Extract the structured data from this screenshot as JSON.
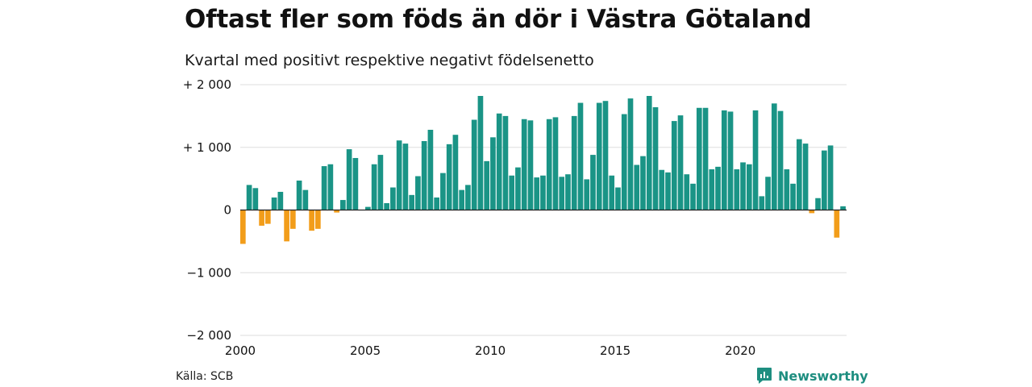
{
  "title": "Oftast fler som föds än dör i Västra Götaland",
  "subtitle": "Kvartal med positivt respektive negativt födelsenetto",
  "source": "Källa: SCB",
  "logo": {
    "name": "Newsworthy",
    "icon": "newsworthy-logo-icon"
  },
  "colors": {
    "positive": "#1a9486",
    "negative": "#f29d1a",
    "grid": "#dddddd",
    "zero": "#222222",
    "brand": "#1e8e80"
  },
  "chart_data": {
    "type": "bar",
    "title": "Oftast fler som föds än dör i Västra Götaland",
    "subtitle": "Kvartal med positivt respektive negativt födelsenetto",
    "xlabel": "",
    "ylabel": "",
    "ylim": [
      -2000,
      2000
    ],
    "xlim": [
      2000,
      2024.25
    ],
    "grid": true,
    "y_ticks": [
      {
        "value": 2000,
        "label": "+ 2 000"
      },
      {
        "value": 1000,
        "label": "+ 1 000"
      },
      {
        "value": 0,
        "label": "0"
      },
      {
        "value": -1000,
        "label": "−1 000"
      },
      {
        "value": -2000,
        "label": "−2 000"
      }
    ],
    "x_ticks": [
      {
        "value": 2000,
        "label": "2000"
      },
      {
        "value": 2005,
        "label": "2005"
      },
      {
        "value": 2010,
        "label": "2010"
      },
      {
        "value": 2015,
        "label": "2015"
      },
      {
        "value": 2020,
        "label": "2020"
      }
    ],
    "categories": [
      "2000K1",
      "2000K2",
      "2000K3",
      "2000K4",
      "2001K1",
      "2001K2",
      "2001K3",
      "2001K4",
      "2002K1",
      "2002K2",
      "2002K3",
      "2002K4",
      "2003K1",
      "2003K2",
      "2003K3",
      "2003K4",
      "2004K1",
      "2004K2",
      "2004K3",
      "2004K4",
      "2005K1",
      "2005K2",
      "2005K3",
      "2005K4",
      "2006K1",
      "2006K2",
      "2006K3",
      "2006K4",
      "2007K1",
      "2007K2",
      "2007K3",
      "2007K4",
      "2008K1",
      "2008K2",
      "2008K3",
      "2008K4",
      "2009K1",
      "2009K2",
      "2009K3",
      "2009K4",
      "2010K1",
      "2010K2",
      "2010K3",
      "2010K4",
      "2011K1",
      "2011K2",
      "2011K3",
      "2011K4",
      "2012K1",
      "2012K2",
      "2012K3",
      "2012K4",
      "2013K1",
      "2013K2",
      "2013K3",
      "2013K4",
      "2014K1",
      "2014K2",
      "2014K3",
      "2014K4",
      "2015K1",
      "2015K2",
      "2015K3",
      "2015K4",
      "2016K1",
      "2016K2",
      "2016K3",
      "2016K4",
      "2017K1",
      "2017K2",
      "2017K3",
      "2017K4",
      "2018K1",
      "2018K2",
      "2018K3",
      "2018K4",
      "2019K1",
      "2019K2",
      "2019K3",
      "2019K4",
      "2020K1",
      "2020K2",
      "2020K3",
      "2020K4",
      "2021K1",
      "2021K2",
      "2021K3",
      "2021K4",
      "2022K1",
      "2022K2",
      "2022K3",
      "2022K4",
      "2023K1",
      "2023K2",
      "2023K3",
      "2023K4",
      "2024K1"
    ],
    "values": [
      -540,
      400,
      350,
      -250,
      -220,
      200,
      290,
      -500,
      -300,
      470,
      320,
      -330,
      -300,
      700,
      730,
      -40,
      160,
      970,
      830,
      0,
      50,
      730,
      880,
      110,
      360,
      1110,
      1060,
      240,
      540,
      1100,
      1280,
      200,
      590,
      1050,
      1200,
      320,
      400,
      1440,
      1820,
      780,
      1160,
      1540,
      1500,
      550,
      680,
      1450,
      1430,
      520,
      550,
      1450,
      1480,
      530,
      570,
      1500,
      1710,
      490,
      880,
      1710,
      1740,
      550,
      360,
      1530,
      1780,
      720,
      860,
      1820,
      1640,
      640,
      600,
      1420,
      1510,
      570,
      420,
      1630,
      1630,
      650,
      690,
      1590,
      1570,
      650,
      760,
      730,
      1590,
      220,
      530,
      1700,
      1580,
      650,
      420,
      1130,
      1060,
      -50,
      190,
      950,
      1030,
      -440,
      60
    ]
  }
}
